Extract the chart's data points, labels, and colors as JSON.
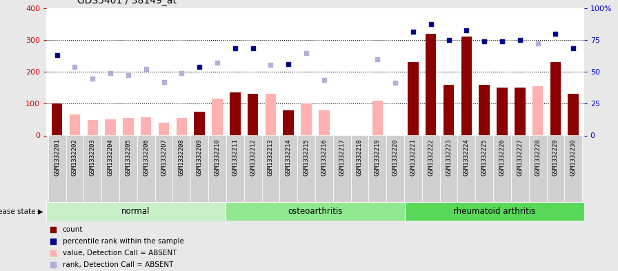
{
  "title": "GDS5401 / 38149_at",
  "samples": [
    "GSM1332201",
    "GSM1332202",
    "GSM1332203",
    "GSM1332204",
    "GSM1332205",
    "GSM1332206",
    "GSM1332207",
    "GSM1332208",
    "GSM1332209",
    "GSM1332210",
    "GSM1332211",
    "GSM1332212",
    "GSM1332213",
    "GSM1332214",
    "GSM1332215",
    "GSM1332216",
    "GSM1332217",
    "GSM1332218",
    "GSM1332219",
    "GSM1332220",
    "GSM1332221",
    "GSM1332222",
    "GSM1332223",
    "GSM1332224",
    "GSM1332225",
    "GSM1332226",
    "GSM1332227",
    "GSM1332228",
    "GSM1332229",
    "GSM1332230"
  ],
  "count_values": [
    100,
    null,
    null,
    null,
    null,
    null,
    null,
    null,
    75,
    null,
    135,
    130,
    null,
    80,
    null,
    null,
    null,
    null,
    null,
    null,
    230,
    320,
    160,
    310,
    160,
    150,
    150,
    null,
    230,
    130
  ],
  "count_absent": [
    null,
    65,
    48,
    50,
    55,
    58,
    40,
    55,
    null,
    115,
    null,
    null,
    130,
    null,
    100,
    80,
    null,
    null,
    110,
    null,
    null,
    null,
    null,
    null,
    null,
    null,
    null,
    155,
    null,
    null
  ],
  "rank_values": [
    252,
    null,
    null,
    null,
    null,
    null,
    null,
    null,
    216,
    null,
    275,
    275,
    null,
    225,
    null,
    null,
    null,
    null,
    null,
    null,
    325,
    350,
    300,
    330,
    295,
    295,
    300,
    null,
    320,
    275
  ],
  "rank_absent": [
    null,
    215,
    178,
    195,
    190,
    210,
    168,
    197,
    null,
    228,
    null,
    null,
    222,
    null,
    258,
    175,
    null,
    null,
    240,
    165,
    null,
    null,
    null,
    null,
    null,
    null,
    null,
    290,
    null,
    null
  ],
  "disease_groups": [
    {
      "label": "normal",
      "start": 0,
      "end": 9,
      "color": "#c8f0c8"
    },
    {
      "label": "osteoarthritis",
      "start": 10,
      "end": 19,
      "color": "#90e890"
    },
    {
      "label": "rheumatoid arthritis",
      "start": 20,
      "end": 29,
      "color": "#58d858"
    }
  ],
  "ylim_left": [
    0,
    400
  ],
  "ylim_right": [
    0,
    100
  ],
  "bar_color_present": "#8b0000",
  "bar_color_absent": "#ffb0b0",
  "scatter_color_present": "#00008b",
  "scatter_color_absent": "#b0b0d8",
  "bg_color": "#e8e8e8",
  "plot_bg": "#ffffff",
  "tick_label_size": 6.5,
  "title_fontsize": 10
}
